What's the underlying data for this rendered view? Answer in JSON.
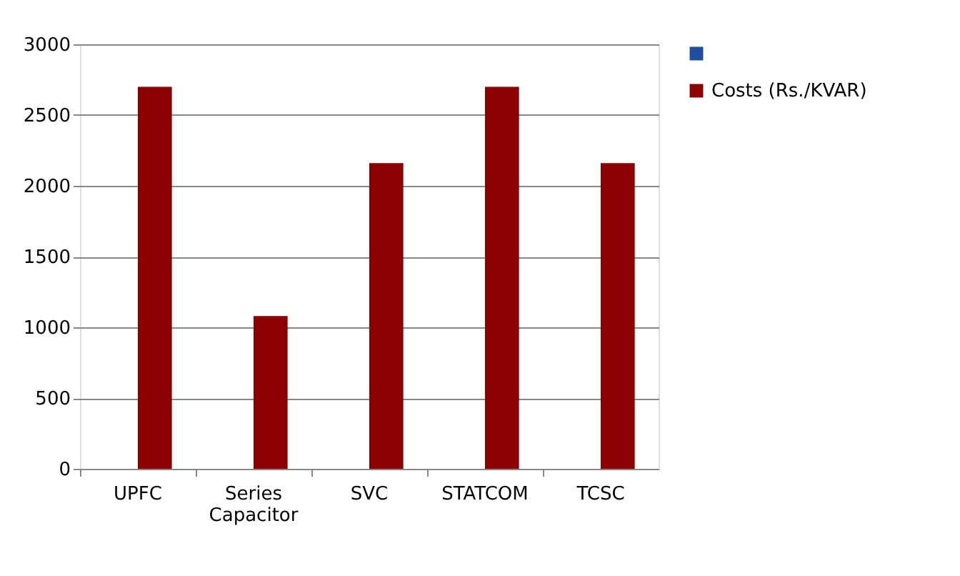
{
  "chart_data": {
    "type": "bar",
    "categories": [
      "UPFC",
      "Series Capacitor",
      "SVC",
      "STATCOM",
      "TCSC"
    ],
    "series": [
      {
        "color": "#1f4e9e",
        "values": [
          null,
          null,
          null,
          null,
          null
        ]
      },
      {
        "name": "Costs (Rs./KVAR)",
        "color": "#8b0000",
        "values": [
          2700,
          1080,
          2160,
          2700,
          2160
        ]
      }
    ],
    "ylim": [
      0,
      3000
    ],
    "yticks": [
      0,
      500,
      1000,
      1500,
      2000,
      2500,
      3000
    ],
    "grid": "y",
    "legend": "right"
  }
}
